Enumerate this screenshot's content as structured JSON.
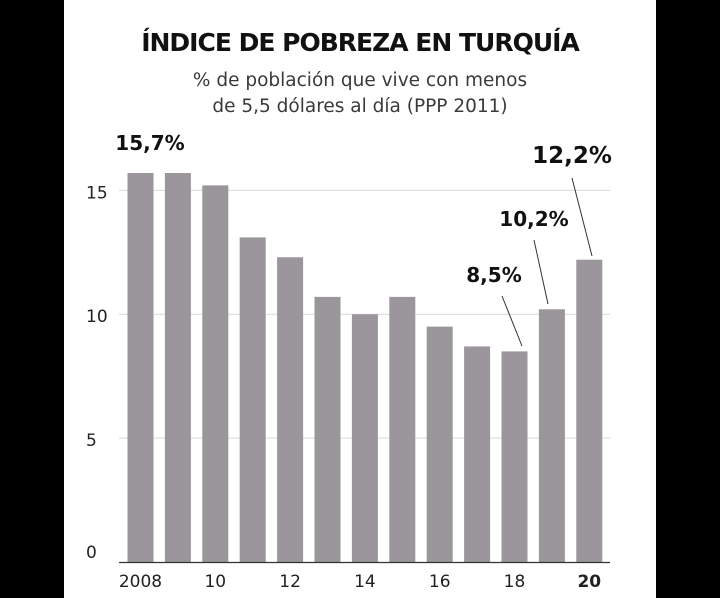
{
  "title": "ÍNDICE DE POBREZA EN TURQUÍA",
  "subtitle_line1": "% de población que vive con menos",
  "subtitle_line2": "de 5,5 dólares al día (PPP 2011)",
  "colors": {
    "bar": "#9b969b",
    "grid": "#d9d9d9",
    "axis": "#333333",
    "text": "#111111",
    "background": "#ffffff",
    "frame": "#000000"
  },
  "chart_data": {
    "type": "bar",
    "title": "ÍNDICE DE POBREZA EN TURQUÍA",
    "subtitle": "% de población que vive con menos de 5,5 dólares al día (PPP 2011)",
    "categories": [
      "2008",
      "2009",
      "2010",
      "2011",
      "2012",
      "2013",
      "2014",
      "2015",
      "2016",
      "2017",
      "2018",
      "2019",
      "2020"
    ],
    "values": [
      15.7,
      15.7,
      15.2,
      13.1,
      12.3,
      10.7,
      10.0,
      10.7,
      9.5,
      8.7,
      8.5,
      10.2,
      12.2
    ],
    "ylim": [
      0,
      15.7
    ],
    "yticks": [
      "0",
      "5",
      "10",
      "15"
    ],
    "ytick_values": [
      0,
      5,
      10,
      15
    ],
    "xtick_labels": [
      {
        "index": 0,
        "text": "2008",
        "bold": false
      },
      {
        "index": 2,
        "text": "10",
        "bold": false
      },
      {
        "index": 4,
        "text": "12",
        "bold": false
      },
      {
        "index": 6,
        "text": "14",
        "bold": false
      },
      {
        "index": 8,
        "text": "16",
        "bold": false
      },
      {
        "index": 10,
        "text": "18",
        "bold": false
      },
      {
        "index": 12,
        "text": "20",
        "bold": true
      }
    ],
    "annotations": [
      {
        "index": 0,
        "text": "15,7%"
      },
      {
        "index": 10,
        "text": "8,5%"
      },
      {
        "index": 11,
        "text": "10,2%"
      },
      {
        "index": 12,
        "text": "12,2%"
      }
    ],
    "grid": true,
    "legend": "none"
  }
}
